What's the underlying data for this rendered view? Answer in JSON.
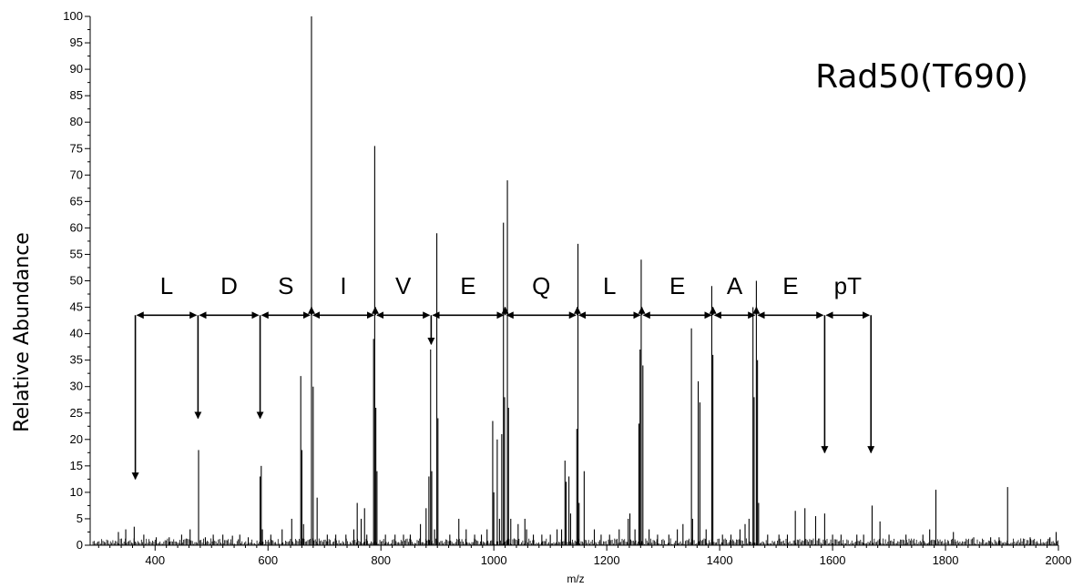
{
  "chart_data": {
    "type": "bar",
    "title": "Rad50(T690)",
    "xlabel": "m/z",
    "ylabel": "Relative Abundance",
    "xlim": [
      285,
      2000
    ],
    "ylim": [
      0,
      100
    ],
    "xticks": [
      400,
      600,
      800,
      1000,
      1200,
      1400,
      1600,
      1800,
      2000
    ],
    "yticks": [
      0,
      5,
      10,
      15,
      20,
      25,
      30,
      35,
      40,
      45,
      50,
      55,
      60,
      65,
      70,
      75,
      80,
      85,
      90,
      95,
      100
    ],
    "grid": false,
    "legend": "none",
    "peaks": [
      [
        335,
        2.5
      ],
      [
        348,
        3
      ],
      [
        363,
        3.5
      ],
      [
        380,
        2
      ],
      [
        402,
        1.5
      ],
      [
        425,
        1.5
      ],
      [
        447,
        2
      ],
      [
        462,
        3
      ],
      [
        477,
        18
      ],
      [
        489,
        1.5
      ],
      [
        503,
        2
      ],
      [
        520,
        2
      ],
      [
        537,
        1.8
      ],
      [
        550,
        2
      ],
      [
        565,
        1.5
      ],
      [
        586,
        13
      ],
      [
        588,
        15
      ],
      [
        590,
        3
      ],
      [
        605,
        2
      ],
      [
        625,
        3
      ],
      [
        642,
        5
      ],
      [
        658,
        32
      ],
      [
        660,
        18
      ],
      [
        663,
        4
      ],
      [
        677,
        100
      ],
      [
        680,
        30
      ],
      [
        687,
        9
      ],
      [
        705,
        2
      ],
      [
        720,
        2
      ],
      [
        738,
        2
      ],
      [
        752,
        3
      ],
      [
        758,
        8
      ],
      [
        765,
        5
      ],
      [
        771,
        7
      ],
      [
        775,
        2
      ],
      [
        787,
        39
      ],
      [
        789,
        75.5
      ],
      [
        791,
        26
      ],
      [
        793,
        14
      ],
      [
        808,
        2
      ],
      [
        825,
        2
      ],
      [
        840,
        2
      ],
      [
        852,
        2
      ],
      [
        870,
        4
      ],
      [
        880,
        7
      ],
      [
        885,
        13
      ],
      [
        888,
        37
      ],
      [
        890,
        14
      ],
      [
        895,
        3
      ],
      [
        899,
        59
      ],
      [
        901,
        24
      ],
      [
        922,
        2
      ],
      [
        938,
        5
      ],
      [
        951,
        3
      ],
      [
        966,
        2
      ],
      [
        978,
        2
      ],
      [
        988,
        3
      ],
      [
        998,
        23.5
      ],
      [
        1000,
        10
      ],
      [
        1006,
        20
      ],
      [
        1010,
        5
      ],
      [
        1014,
        21
      ],
      [
        1017,
        61
      ],
      [
        1019,
        28
      ],
      [
        1024,
        69
      ],
      [
        1026,
        26
      ],
      [
        1030,
        5
      ],
      [
        1043,
        4
      ],
      [
        1055,
        5
      ],
      [
        1058,
        3
      ],
      [
        1070,
        2
      ],
      [
        1085,
        2
      ],
      [
        1100,
        2
      ],
      [
        1112,
        3
      ],
      [
        1120,
        3
      ],
      [
        1126,
        16
      ],
      [
        1128,
        12
      ],
      [
        1133,
        13
      ],
      [
        1136,
        6
      ],
      [
        1147,
        22
      ],
      [
        1149,
        57
      ],
      [
        1151,
        8
      ],
      [
        1160,
        14
      ],
      [
        1178,
        3
      ],
      [
        1190,
        2
      ],
      [
        1205,
        2
      ],
      [
        1222,
        3
      ],
      [
        1238,
        5
      ],
      [
        1241,
        6
      ],
      [
        1250,
        3
      ],
      [
        1257,
        23
      ],
      [
        1259,
        37
      ],
      [
        1261,
        54
      ],
      [
        1264,
        34
      ],
      [
        1275,
        3
      ],
      [
        1290,
        2
      ],
      [
        1310,
        2
      ],
      [
        1325,
        3
      ],
      [
        1335,
        4
      ],
      [
        1350,
        41
      ],
      [
        1352,
        5
      ],
      [
        1362,
        31
      ],
      [
        1365,
        27
      ],
      [
        1376,
        3
      ],
      [
        1386,
        49
      ],
      [
        1388,
        36
      ],
      [
        1405,
        2
      ],
      [
        1420,
        2
      ],
      [
        1436,
        3
      ],
      [
        1445,
        4
      ],
      [
        1452,
        5
      ],
      [
        1459,
        45
      ],
      [
        1461,
        28
      ],
      [
        1465,
        50
      ],
      [
        1467,
        35
      ],
      [
        1469,
        8
      ],
      [
        1485,
        2
      ],
      [
        1505,
        2
      ],
      [
        1520,
        2
      ],
      [
        1534,
        6.5
      ],
      [
        1551,
        7
      ],
      [
        1570,
        5.5
      ],
      [
        1586,
        6
      ],
      [
        1600,
        2
      ],
      [
        1615,
        2
      ],
      [
        1643,
        2
      ],
      [
        1655,
        2
      ],
      [
        1670,
        7.5
      ],
      [
        1684,
        4.5
      ],
      [
        1700,
        2
      ],
      [
        1730,
        2
      ],
      [
        1760,
        2
      ],
      [
        1772,
        3
      ],
      [
        1783,
        10.5
      ],
      [
        1814,
        2.5
      ],
      [
        1850,
        1.5
      ],
      [
        1880,
        1.5
      ],
      [
        1895,
        1.5
      ],
      [
        1910,
        11
      ],
      [
        1950,
        1.5
      ],
      [
        1985,
        1.5
      ],
      [
        1996,
        2.5
      ]
    ],
    "sequence_ions": [
      365,
      476,
      586,
      677,
      790,
      889,
      1020,
      1148,
      1262,
      1388,
      1465,
      1586,
      1668
    ],
    "sequence_ion_intensities": [
      12.5,
      24,
      24,
      45,
      45,
      38,
      45,
      45,
      45,
      45,
      45,
      17.5,
      17.5
    ],
    "sequence_labels": [
      "L",
      "D",
      "S",
      "I",
      "V",
      "E",
      "Q",
      "L",
      "E",
      "A",
      "E",
      "pT"
    ],
    "sequence_line_y": 43.5,
    "sequence_label_y": 47.5,
    "colors": {
      "peaks": "#000000",
      "axis": "#000000",
      "annotation": "#000000"
    }
  }
}
